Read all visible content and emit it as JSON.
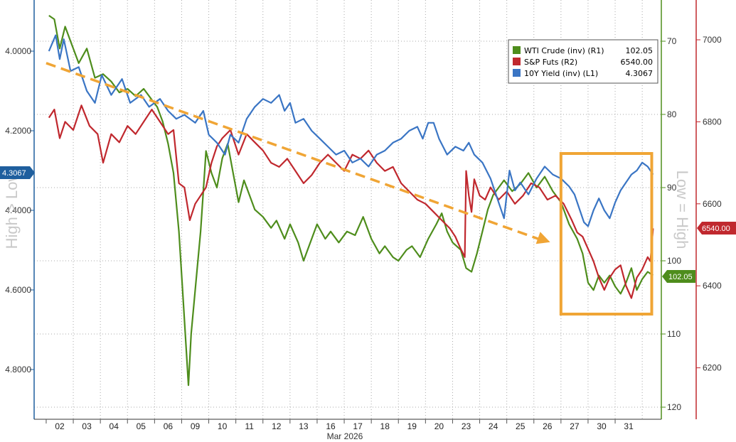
{
  "chart_data": {
    "type": "line",
    "x_axis": {
      "ticks": [
        "02",
        "03",
        "04",
        "05",
        "06",
        "09",
        "10",
        "11",
        "12",
        "13",
        "16",
        "17",
        "18",
        "19",
        "20",
        "23",
        "24",
        "25",
        "26",
        "27",
        "30",
        "31"
      ],
      "month_label": "Mar 2026"
    },
    "left_axis": {
      "title": "High > Low",
      "ticks": [
        "4.0000",
        "4.2000",
        "4.4000",
        "4.6000",
        "4.8000"
      ],
      "range": [
        3.9,
        4.9
      ],
      "inverted": true,
      "color": "#1f5f9e"
    },
    "r1_axis": {
      "ticks": [
        "70",
        "80",
        "90",
        "100",
        "110",
        "120"
      ],
      "range": [
        65,
        120
      ],
      "inverted": true,
      "color": "#4e8d1c"
    },
    "r2_axis": {
      "title": "Low = High",
      "ticks": [
        "7000",
        "6800",
        "6600",
        "6400",
        "6200"
      ],
      "range": [
        6100,
        7100
      ],
      "color": "#c0282e"
    },
    "legend": [
      {
        "name": "WTI Crude (inv) (R1)",
        "value": "102.05",
        "color": "#4e8d1c"
      },
      {
        "name": "S&P Futs (R2)",
        "value": "6540.00",
        "color": "#c0282e"
      },
      {
        "name": "10Y Yield (inv) (L1)",
        "value": "4.3067",
        "color": "#3a75c4"
      }
    ],
    "last_value_tags": {
      "yield": "4.3067",
      "wti": "102.05",
      "spx": "6540.00"
    },
    "series": [
      {
        "name": "10Y Yield (inv) (L1)",
        "axis": "left",
        "color": "#3a75c4",
        "points": [
          [
            -0.4,
            4.0
          ],
          [
            -0.15,
            3.96
          ],
          [
            0.0,
            4.02
          ],
          [
            0.15,
            3.97
          ],
          [
            0.4,
            4.05
          ],
          [
            0.7,
            4.04
          ],
          [
            1.0,
            4.1
          ],
          [
            1.3,
            4.13
          ],
          [
            1.55,
            4.06
          ],
          [
            1.9,
            4.11
          ],
          [
            2.3,
            4.07
          ],
          [
            2.6,
            4.13
          ],
          [
            3.0,
            4.11
          ],
          [
            3.3,
            4.14
          ],
          [
            3.7,
            4.12
          ],
          [
            4.0,
            4.15
          ],
          [
            4.3,
            4.17
          ],
          [
            4.6,
            4.16
          ],
          [
            5.0,
            4.18
          ],
          [
            5.3,
            4.15
          ],
          [
            5.5,
            4.21
          ],
          [
            5.8,
            4.23
          ],
          [
            6.1,
            4.26
          ],
          [
            6.3,
            4.21
          ],
          [
            6.6,
            4.23
          ],
          [
            6.9,
            4.17
          ],
          [
            7.2,
            4.14
          ],
          [
            7.5,
            4.12
          ],
          [
            7.8,
            4.13
          ],
          [
            8.1,
            4.11
          ],
          [
            8.3,
            4.15
          ],
          [
            8.5,
            4.13
          ],
          [
            8.7,
            4.18
          ],
          [
            9.0,
            4.17
          ],
          [
            9.3,
            4.2
          ],
          [
            9.6,
            4.22
          ],
          [
            9.9,
            4.24
          ],
          [
            10.2,
            4.26
          ],
          [
            10.5,
            4.25
          ],
          [
            10.8,
            4.28
          ],
          [
            11.1,
            4.27
          ],
          [
            11.4,
            4.29
          ],
          [
            11.7,
            4.26
          ],
          [
            12.0,
            4.25
          ],
          [
            12.3,
            4.23
          ],
          [
            12.6,
            4.22
          ],
          [
            12.9,
            4.2
          ],
          [
            13.2,
            4.19
          ],
          [
            13.4,
            4.22
          ],
          [
            13.6,
            4.18
          ],
          [
            13.8,
            4.18
          ],
          [
            14.0,
            4.22
          ],
          [
            14.3,
            4.26
          ],
          [
            14.6,
            4.24
          ],
          [
            14.9,
            4.25
          ],
          [
            15.1,
            4.23
          ],
          [
            15.3,
            4.26
          ],
          [
            15.6,
            4.28
          ],
          [
            15.9,
            4.32
          ],
          [
            16.2,
            4.38
          ],
          [
            16.4,
            4.42
          ],
          [
            16.6,
            4.3
          ],
          [
            16.8,
            4.35
          ],
          [
            17.0,
            4.33
          ],
          [
            17.3,
            4.36
          ],
          [
            17.6,
            4.32
          ],
          [
            17.9,
            4.29
          ],
          [
            18.2,
            4.31
          ],
          [
            18.5,
            4.32
          ],
          [
            18.8,
            4.34
          ],
          [
            19.0,
            4.36
          ],
          [
            19.2,
            4.4
          ],
          [
            19.35,
            4.43
          ],
          [
            19.5,
            4.44
          ],
          [
            19.7,
            4.4
          ],
          [
            19.9,
            4.37
          ],
          [
            20.1,
            4.4
          ],
          [
            20.3,
            4.42
          ],
          [
            20.5,
            4.38
          ],
          [
            20.7,
            4.35
          ],
          [
            20.9,
            4.33
          ],
          [
            21.1,
            4.31
          ],
          [
            21.3,
            4.3
          ],
          [
            21.5,
            4.28
          ],
          [
            21.7,
            4.29
          ],
          [
            21.9,
            4.31
          ]
        ]
      },
      {
        "name": "WTI Crude (inv) (R1)",
        "axis": "r1",
        "color": "#4e8d1c",
        "points": [
          [
            -0.4,
            66.5
          ],
          [
            -0.2,
            67.0
          ],
          [
            0.0,
            71.0
          ],
          [
            0.2,
            68.0
          ],
          [
            0.45,
            70.5
          ],
          [
            0.7,
            73.0
          ],
          [
            1.0,
            71.0
          ],
          [
            1.3,
            75.0
          ],
          [
            1.6,
            74.5
          ],
          [
            1.9,
            75.5
          ],
          [
            2.2,
            77.0
          ],
          [
            2.5,
            76.5
          ],
          [
            2.8,
            77.5
          ],
          [
            3.1,
            76.5
          ],
          [
            3.4,
            78.0
          ],
          [
            3.6,
            79.0
          ],
          [
            3.8,
            81.0
          ],
          [
            4.0,
            84.0
          ],
          [
            4.2,
            88.0
          ],
          [
            4.4,
            96.0
          ],
          [
            4.55,
            105.0
          ],
          [
            4.65,
            111.0
          ],
          [
            4.75,
            117.0
          ],
          [
            4.85,
            110.0
          ],
          [
            5.0,
            104.0
          ],
          [
            5.2,
            96.0
          ],
          [
            5.4,
            85.0
          ],
          [
            5.6,
            88.0
          ],
          [
            5.8,
            90.0
          ],
          [
            6.0,
            86.0
          ],
          [
            6.2,
            84.0
          ],
          [
            6.4,
            88.0
          ],
          [
            6.6,
            92.0
          ],
          [
            6.8,
            89.0
          ],
          [
            7.0,
            91.0
          ],
          [
            7.2,
            93.0
          ],
          [
            7.5,
            94.0
          ],
          [
            7.8,
            95.5
          ],
          [
            8.0,
            94.5
          ],
          [
            8.3,
            97.0
          ],
          [
            8.5,
            95.0
          ],
          [
            8.8,
            97.5
          ],
          [
            9.0,
            100.0
          ],
          [
            9.2,
            98.0
          ],
          [
            9.5,
            95.0
          ],
          [
            9.8,
            97.0
          ],
          [
            10.0,
            96.0
          ],
          [
            10.3,
            97.5
          ],
          [
            10.6,
            96.0
          ],
          [
            10.9,
            96.5
          ],
          [
            11.2,
            94.0
          ],
          [
            11.5,
            97.0
          ],
          [
            11.8,
            99.0
          ],
          [
            12.0,
            98.0
          ],
          [
            12.3,
            99.5
          ],
          [
            12.5,
            100.0
          ],
          [
            12.8,
            98.5
          ],
          [
            13.0,
            98.0
          ],
          [
            13.3,
            99.5
          ],
          [
            13.6,
            97.0
          ],
          [
            13.9,
            95.0
          ],
          [
            14.1,
            93.5
          ],
          [
            14.3,
            96.0
          ],
          [
            14.5,
            97.5
          ],
          [
            14.8,
            98.5
          ],
          [
            15.0,
            101.0
          ],
          [
            15.2,
            101.5
          ],
          [
            15.4,
            99.0
          ],
          [
            15.6,
            96.0
          ],
          [
            15.8,
            93.0
          ],
          [
            16.0,
            91.0
          ],
          [
            16.2,
            90.0
          ],
          [
            16.4,
            89.0
          ],
          [
            16.7,
            90.5
          ],
          [
            17.0,
            89.5
          ],
          [
            17.3,
            88.0
          ],
          [
            17.6,
            90.0
          ],
          [
            17.9,
            88.5
          ],
          [
            18.2,
            90.5
          ],
          [
            18.5,
            92.0
          ],
          [
            18.8,
            95.0
          ],
          [
            19.1,
            97.0
          ],
          [
            19.3,
            99.0
          ],
          [
            19.5,
            103.0
          ],
          [
            19.7,
            104.0
          ],
          [
            19.9,
            102.0
          ],
          [
            20.1,
            103.0
          ],
          [
            20.3,
            102.0
          ],
          [
            20.5,
            103.5
          ],
          [
            20.7,
            104.5
          ],
          [
            20.9,
            103.0
          ],
          [
            21.1,
            101.0
          ],
          [
            21.3,
            104.0
          ],
          [
            21.5,
            102.5
          ],
          [
            21.7,
            101.5
          ],
          [
            21.9,
            102.0
          ]
        ]
      },
      {
        "name": "S&P Futs (R2)",
        "axis": "r2",
        "color": "#c0282e",
        "points": [
          [
            -0.4,
            6810
          ],
          [
            -0.2,
            6830
          ],
          [
            0.0,
            6760
          ],
          [
            0.2,
            6800
          ],
          [
            0.5,
            6780
          ],
          [
            0.8,
            6840
          ],
          [
            1.1,
            6790
          ],
          [
            1.4,
            6770
          ],
          [
            1.6,
            6700
          ],
          [
            1.9,
            6770
          ],
          [
            2.2,
            6750
          ],
          [
            2.5,
            6790
          ],
          [
            2.8,
            6770
          ],
          [
            3.1,
            6800
          ],
          [
            3.4,
            6830
          ],
          [
            3.7,
            6800
          ],
          [
            4.0,
            6770
          ],
          [
            4.2,
            6780
          ],
          [
            4.4,
            6650
          ],
          [
            4.6,
            6640
          ],
          [
            4.8,
            6560
          ],
          [
            5.0,
            6600
          ],
          [
            5.2,
            6620
          ],
          [
            5.4,
            6640
          ],
          [
            5.6,
            6700
          ],
          [
            5.8,
            6740
          ],
          [
            6.0,
            6760
          ],
          [
            6.3,
            6780
          ],
          [
            6.6,
            6720
          ],
          [
            6.9,
            6770
          ],
          [
            7.2,
            6750
          ],
          [
            7.5,
            6730
          ],
          [
            7.8,
            6700
          ],
          [
            8.1,
            6690
          ],
          [
            8.4,
            6710
          ],
          [
            8.7,
            6680
          ],
          [
            9.0,
            6650
          ],
          [
            9.3,
            6670
          ],
          [
            9.6,
            6700
          ],
          [
            9.9,
            6720
          ],
          [
            10.2,
            6700
          ],
          [
            10.5,
            6680
          ],
          [
            10.8,
            6720
          ],
          [
            11.1,
            6710
          ],
          [
            11.4,
            6730
          ],
          [
            11.7,
            6700
          ],
          [
            12.0,
            6680
          ],
          [
            12.3,
            6690
          ],
          [
            12.6,
            6650
          ],
          [
            12.9,
            6630
          ],
          [
            13.2,
            6610
          ],
          [
            13.5,
            6600
          ],
          [
            13.8,
            6580
          ],
          [
            14.1,
            6560
          ],
          [
            14.4,
            6540
          ],
          [
            14.6,
            6520
          ],
          [
            14.8,
            6490
          ],
          [
            14.95,
            6470
          ],
          [
            15.0,
            6680
          ],
          [
            15.1,
            6620
          ],
          [
            15.2,
            6580
          ],
          [
            15.3,
            6660
          ],
          [
            15.5,
            6620
          ],
          [
            15.7,
            6610
          ],
          [
            15.9,
            6640
          ],
          [
            16.2,
            6610
          ],
          [
            16.5,
            6630
          ],
          [
            16.8,
            6600
          ],
          [
            17.1,
            6620
          ],
          [
            17.4,
            6650
          ],
          [
            17.7,
            6640
          ],
          [
            18.0,
            6610
          ],
          [
            18.3,
            6620
          ],
          [
            18.6,
            6600
          ],
          [
            18.9,
            6560
          ],
          [
            19.1,
            6530
          ],
          [
            19.3,
            6520
          ],
          [
            19.5,
            6490
          ],
          [
            19.7,
            6460
          ],
          [
            19.9,
            6420
          ],
          [
            20.1,
            6390
          ],
          [
            20.3,
            6420
          ],
          [
            20.5,
            6440
          ],
          [
            20.7,
            6450
          ],
          [
            20.9,
            6400
          ],
          [
            21.1,
            6370
          ],
          [
            21.3,
            6420
          ],
          [
            21.5,
            6440
          ],
          [
            21.7,
            6470
          ],
          [
            21.8,
            6460
          ],
          [
            21.9,
            6540
          ]
        ]
      }
    ],
    "trend_arrow": {
      "from": {
        "x": -0.5,
        "y": 4.03
      },
      "to": {
        "x": 18.1,
        "y": 4.48
      },
      "color": "#f0a535"
    },
    "highlight_box": {
      "x_from": 18.5,
      "x_to": 21.85,
      "color": "#f0a535"
    }
  }
}
